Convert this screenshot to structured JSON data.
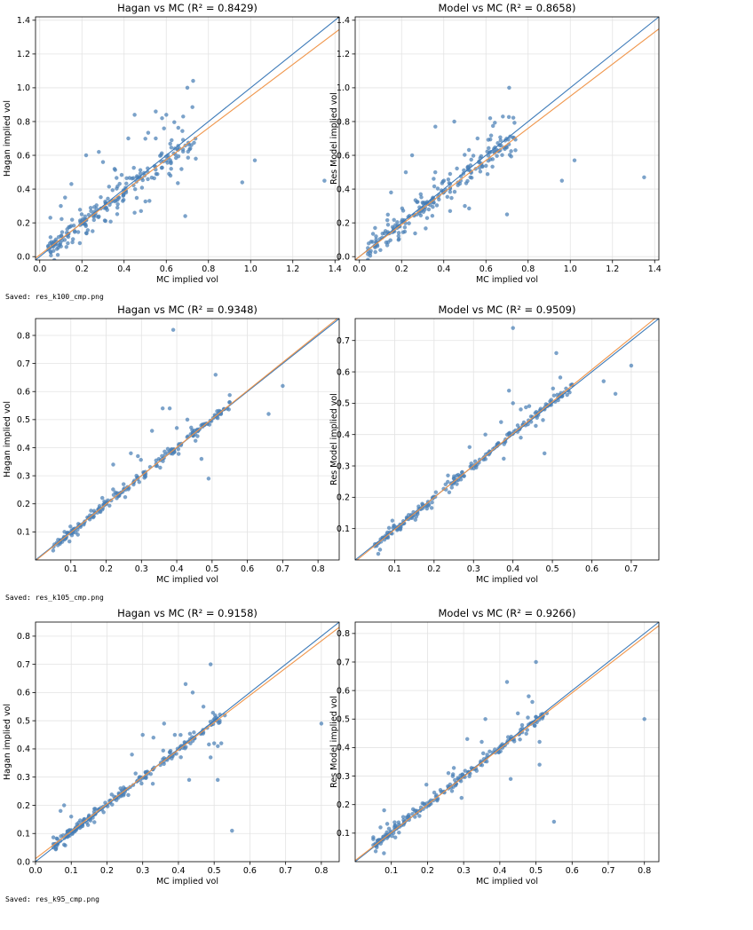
{
  "logs": {
    "saved1": "Saved: res_k100_cmp.png",
    "saved2": "Saved: res_k105_cmp.png",
    "saved3": "Saved: res_k95_cmp.png"
  },
  "trailing_text": "",
  "colors": {
    "points": "#4a7fb5",
    "identity": "#3b79b8",
    "fit": "#f0954a"
  },
  "chart_data": [
    {
      "type": "scatter",
      "title": "Hagan vs MC  (R² = 0.8429)",
      "xlabel": "MC implied vol",
      "ylabel": "Hagan implied vol",
      "xlim": [
        -0.02,
        1.42
      ],
      "ylim": [
        -0.02,
        1.42
      ],
      "xticks": [
        0.0,
        0.2,
        0.4,
        0.6,
        0.8,
        1.0,
        1.2,
        1.4
      ],
      "yticks": [
        0.0,
        0.2,
        0.4,
        0.6,
        0.8,
        1.0,
        1.2,
        1.4
      ],
      "tick_decimals": 1,
      "grid": true,
      "fit": {
        "slope": 0.94,
        "intercept": 0.01
      },
      "seed": 11,
      "outliers": [
        [
          0.7,
          1.0
        ],
        [
          0.6,
          0.84
        ],
        [
          0.55,
          0.86
        ],
        [
          0.58,
          0.82
        ],
        [
          0.68,
          0.83
        ],
        [
          0.96,
          0.44
        ],
        [
          1.02,
          0.57
        ],
        [
          1.35,
          0.45
        ],
        [
          0.69,
          0.24
        ],
        [
          0.74,
          0.58
        ],
        [
          0.45,
          0.84
        ],
        [
          0.22,
          0.6
        ],
        [
          0.28,
          0.62
        ],
        [
          0.3,
          0.56
        ],
        [
          0.12,
          0.35
        ],
        [
          0.15,
          0.43
        ],
        [
          0.48,
          0.27
        ],
        [
          0.45,
          0.26
        ],
        [
          0.52,
          0.33
        ],
        [
          0.62,
          0.48
        ],
        [
          0.55,
          0.7
        ],
        [
          0.42,
          0.7
        ],
        [
          0.19,
          0.08
        ],
        [
          0.1,
          0.3
        ]
      ],
      "n_cluster": 220,
      "spread": 0.03,
      "clip_x": [
        0.04,
        0.74
      ],
      "noise_frac": 0.35,
      "noise_scale": 0.1
    },
    {
      "type": "scatter",
      "title": "Model vs MC  (R² = 0.8658)",
      "xlabel": "MC implied vol",
      "ylabel": "Res Model implied vol",
      "xlim": [
        -0.02,
        1.42
      ],
      "ylim": [
        -0.02,
        1.42
      ],
      "xticks": [
        0.0,
        0.2,
        0.4,
        0.6,
        0.8,
        1.0,
        1.2,
        1.4
      ],
      "yticks": [
        0.0,
        0.2,
        0.4,
        0.6,
        0.8,
        1.0,
        1.2,
        1.4
      ],
      "tick_decimals": 1,
      "grid": true,
      "fit": {
        "slope": 0.95,
        "intercept": 0.0
      },
      "seed": 23,
      "outliers": [
        [
          0.71,
          1.0
        ],
        [
          0.62,
          0.82
        ],
        [
          0.68,
          0.83
        ],
        [
          0.45,
          0.8
        ],
        [
          0.96,
          0.45
        ],
        [
          1.02,
          0.57
        ],
        [
          1.35,
          0.47
        ],
        [
          0.7,
          0.25
        ],
        [
          0.74,
          0.63
        ],
        [
          0.36,
          0.77
        ],
        [
          0.25,
          0.6
        ],
        [
          0.22,
          0.5
        ],
        [
          0.15,
          0.38
        ],
        [
          0.56,
          0.7
        ],
        [
          0.48,
          0.45
        ],
        [
          0.5,
          0.3
        ],
        [
          0.43,
          0.27
        ]
      ],
      "n_cluster": 220,
      "spread": 0.03,
      "clip_x": [
        0.04,
        0.74
      ],
      "noise_frac": 0.3,
      "noise_scale": 0.09
    },
    {
      "type": "scatter",
      "title": "Hagan vs MC  (R² = 0.9348)",
      "xlabel": "MC implied vol",
      "ylabel": "Hagan implied vol",
      "xlim": [
        0.0,
        0.86
      ],
      "ylim": [
        0.0,
        0.86
      ],
      "xticks": [
        0.1,
        0.2,
        0.3,
        0.4,
        0.5,
        0.6,
        0.7,
        0.8
      ],
      "yticks": [
        0.1,
        0.2,
        0.3,
        0.4,
        0.5,
        0.6,
        0.7,
        0.8
      ],
      "tick_decimals": 1,
      "grid": true,
      "fit": {
        "slope": 1.01,
        "intercept": -0.003
      },
      "seed": 37,
      "outliers": [
        [
          0.39,
          0.82
        ],
        [
          0.51,
          0.66
        ],
        [
          0.7,
          0.62
        ],
        [
          0.66,
          0.52
        ],
        [
          0.49,
          0.29
        ],
        [
          0.47,
          0.36
        ],
        [
          0.36,
          0.54
        ],
        [
          0.38,
          0.54
        ],
        [
          0.33,
          0.46
        ],
        [
          0.43,
          0.5
        ],
        [
          0.22,
          0.34
        ],
        [
          0.27,
          0.38
        ],
        [
          0.29,
          0.37
        ],
        [
          0.4,
          0.47
        ],
        [
          0.23,
          0.22
        ],
        [
          0.12,
          0.09
        ]
      ],
      "n_cluster": 210,
      "spread": 0.008,
      "clip_x": [
        0.05,
        0.55
      ],
      "noise_frac": 0.12,
      "noise_scale": 0.04
    },
    {
      "type": "scatter",
      "title": "Model vs MC  (R² = 0.9509)",
      "xlabel": "MC implied vol",
      "ylabel": "Res Model implied vol",
      "xlim": [
        0.0,
        0.77
      ],
      "ylim": [
        0.0,
        0.77
      ],
      "xticks": [
        0.1,
        0.2,
        0.3,
        0.4,
        0.5,
        0.6,
        0.7
      ],
      "yticks": [
        0.1,
        0.2,
        0.3,
        0.4,
        0.5,
        0.6,
        0.7
      ],
      "tick_decimals": 1,
      "grid": true,
      "fit": {
        "slope": 1.02,
        "intercept": -0.005
      },
      "seed": 41,
      "outliers": [
        [
          0.4,
          0.74
        ],
        [
          0.51,
          0.66
        ],
        [
          0.7,
          0.62
        ],
        [
          0.66,
          0.53
        ],
        [
          0.39,
          0.54
        ],
        [
          0.4,
          0.5
        ],
        [
          0.42,
          0.48
        ],
        [
          0.37,
          0.44
        ],
        [
          0.33,
          0.4
        ],
        [
          0.29,
          0.36
        ],
        [
          0.42,
          0.39
        ],
        [
          0.46,
          0.46
        ],
        [
          0.48,
          0.34
        ],
        [
          0.63,
          0.57
        ],
        [
          0.55,
          0.56
        ],
        [
          0.25,
          0.26
        ]
      ],
      "n_cluster": 210,
      "spread": 0.007,
      "clip_x": [
        0.05,
        0.55
      ],
      "noise_frac": 0.12,
      "noise_scale": 0.035
    },
    {
      "type": "scatter",
      "title": "Hagan vs MC  (R² = 0.9158)",
      "xlabel": "MC implied vol",
      "ylabel": "Hagan implied vol",
      "xlim": [
        0.0,
        0.85
      ],
      "ylim": [
        0.0,
        0.85
      ],
      "xticks": [
        0.0,
        0.1,
        0.2,
        0.3,
        0.4,
        0.5,
        0.6,
        0.7,
        0.8
      ],
      "yticks": [
        0.0,
        0.1,
        0.2,
        0.3,
        0.4,
        0.5,
        0.6,
        0.7,
        0.8
      ],
      "tick_decimals": 1,
      "grid": true,
      "fit": {
        "slope": 0.965,
        "intercept": 0.011
      },
      "seed": 53,
      "outliers": [
        [
          0.49,
          0.7
        ],
        [
          0.42,
          0.63
        ],
        [
          0.44,
          0.6
        ],
        [
          0.8,
          0.49
        ],
        [
          0.55,
          0.11
        ],
        [
          0.51,
          0.29
        ],
        [
          0.43,
          0.29
        ],
        [
          0.52,
          0.42
        ],
        [
          0.36,
          0.49
        ],
        [
          0.3,
          0.45
        ],
        [
          0.33,
          0.44
        ],
        [
          0.27,
          0.38
        ],
        [
          0.39,
          0.45
        ],
        [
          0.47,
          0.55
        ],
        [
          0.08,
          0.2
        ],
        [
          0.1,
          0.16
        ],
        [
          0.07,
          0.18
        ],
        [
          0.08,
          0.06
        ],
        [
          0.49,
          0.37
        ],
        [
          0.5,
          0.42
        ]
      ],
      "n_cluster": 210,
      "spread": 0.008,
      "clip_x": [
        0.05,
        0.53
      ],
      "noise_frac": 0.15,
      "noise_scale": 0.04
    },
    {
      "type": "scatter",
      "title": "Model vs MC  (R² = 0.9266)",
      "xlabel": "MC implied vol",
      "ylabel": "Res Model implied vol",
      "xlim": [
        0.0,
        0.84
      ],
      "ylim": [
        0.0,
        0.84
      ],
      "xticks": [
        0.1,
        0.2,
        0.3,
        0.4,
        0.5,
        0.6,
        0.7,
        0.8
      ],
      "yticks": [
        0.1,
        0.2,
        0.3,
        0.4,
        0.5,
        0.6,
        0.7,
        0.8
      ],
      "tick_decimals": 1,
      "grid": true,
      "fit": {
        "slope": 0.98,
        "intercept": 0.004
      },
      "seed": 67,
      "outliers": [
        [
          0.5,
          0.7
        ],
        [
          0.42,
          0.63
        ],
        [
          0.8,
          0.5
        ],
        [
          0.55,
          0.14
        ],
        [
          0.51,
          0.34
        ],
        [
          0.43,
          0.29
        ],
        [
          0.51,
          0.42
        ],
        [
          0.36,
          0.5
        ],
        [
          0.31,
          0.43
        ],
        [
          0.35,
          0.42
        ],
        [
          0.48,
          0.58
        ],
        [
          0.49,
          0.56
        ],
        [
          0.45,
          0.52
        ],
        [
          0.08,
          0.18
        ],
        [
          0.07,
          0.12
        ],
        [
          0.27,
          0.3
        ]
      ],
      "n_cluster": 210,
      "spread": 0.008,
      "clip_x": [
        0.05,
        0.53
      ],
      "noise_frac": 0.15,
      "noise_scale": 0.04
    }
  ]
}
